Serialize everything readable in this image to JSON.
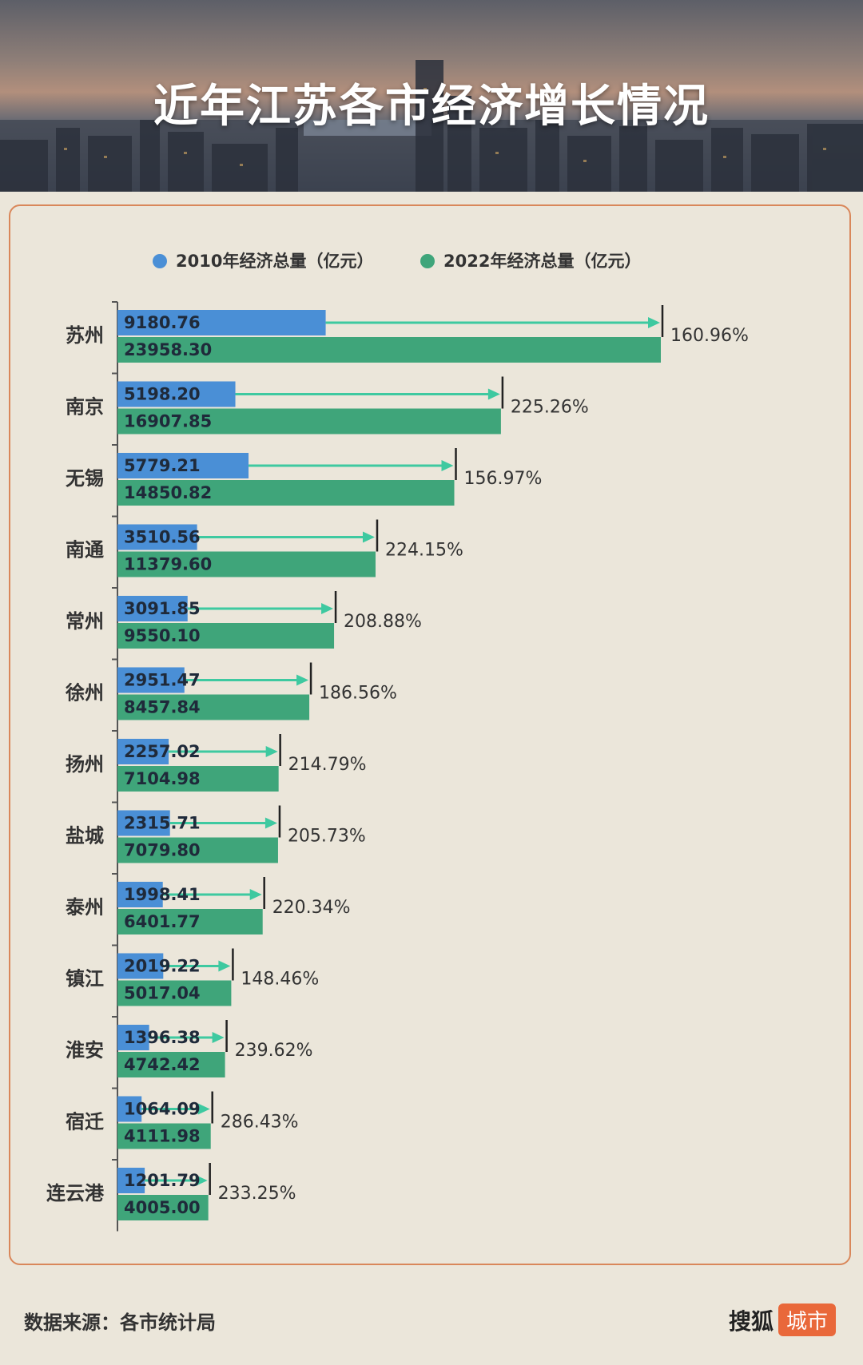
{
  "title": "近年江苏各市经济增长情况",
  "chart_data": {
    "type": "bar",
    "orientation": "horizontal",
    "categories": [
      "苏州",
      "南京",
      "无锡",
      "南通",
      "常州",
      "徐州",
      "扬州",
      "盐城",
      "泰州",
      "镇江",
      "淮安",
      "宿迁",
      "连云港"
    ],
    "series": [
      {
        "name": "2010年经济总量（亿元）",
        "color": "#4a8fd6",
        "values": [
          9180.76,
          5198.2,
          5779.21,
          3510.56,
          3091.85,
          2951.47,
          2257.02,
          2315.71,
          1998.41,
          2019.22,
          1396.38,
          1064.09,
          1201.79
        ]
      },
      {
        "name": "2022年经济总量（亿元）",
        "color": "#3fa57a",
        "values": [
          23958.3,
          16907.85,
          14850.82,
          11379.6,
          9550.1,
          8457.84,
          7104.98,
          7079.8,
          6401.77,
          5017.04,
          4742.42,
          4111.98,
          4005.0
        ]
      }
    ],
    "growth_labels": [
      "160.96%",
      "225.26%",
      "156.97%",
      "224.15%",
      "208.88%",
      "186.56%",
      "214.79%",
      "205.73%",
      "220.34%",
      "148.46%",
      "239.62%",
      "286.43%",
      "233.25%"
    ],
    "arrow_color": "#3ec9a0",
    "legend_position": "top",
    "grid": false
  },
  "footer": {
    "source": "数据来源：各市统计局",
    "logo_main": "搜狐",
    "logo_tag": "城市"
  }
}
